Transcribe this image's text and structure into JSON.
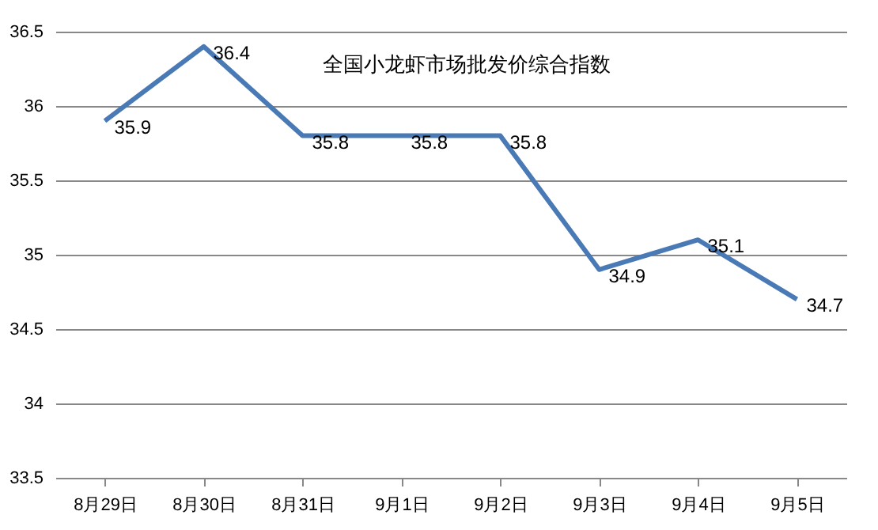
{
  "chart_data": {
    "type": "line",
    "title": "全国小龙虾市场批发价综合指数",
    "categories": [
      "8月29日",
      "8月30日",
      "8月31日",
      "9月1日",
      "9月2日",
      "9月3日",
      "9月4日",
      "9月5日"
    ],
    "series": [
      {
        "color": "#4a7ab5",
        "values": [
          35.9,
          36.4,
          35.8,
          35.8,
          35.8,
          34.9,
          35.1,
          34.7
        ]
      }
    ],
    "ylim": [
      33.5,
      36.5
    ],
    "yticks": [
      33.5,
      34,
      34.5,
      35,
      35.5,
      36,
      36.5
    ],
    "grid": "y",
    "data_labels": true,
    "legend": false,
    "marker": "none",
    "line_style": "solid"
  }
}
